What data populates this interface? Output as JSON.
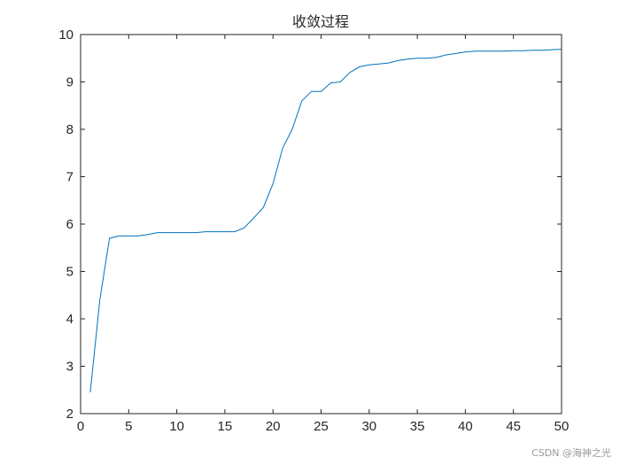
{
  "chart_data": {
    "type": "line",
    "title": "收敛过程",
    "xlabel": "",
    "ylabel": "",
    "xlim": [
      0,
      50
    ],
    "ylim": [
      2,
      10
    ],
    "xticks": [
      0,
      5,
      10,
      15,
      20,
      25,
      30,
      35,
      40,
      45,
      50
    ],
    "yticks": [
      2,
      3,
      4,
      5,
      6,
      7,
      8,
      9,
      10
    ],
    "grid": false,
    "line_color": "#0072BD",
    "series": [
      {
        "x": [
          1,
          2,
          3,
          4,
          5,
          6,
          7,
          8,
          9,
          10,
          11,
          12,
          13,
          14,
          15,
          16,
          17,
          18,
          19,
          20,
          21,
          22,
          23,
          24,
          25,
          26,
          27,
          28,
          29,
          30,
          31,
          32,
          33,
          34,
          35,
          36,
          37,
          38,
          39,
          40,
          41,
          42,
          43,
          44,
          45,
          46,
          47,
          48,
          49,
          50
        ],
        "y": [
          2.45,
          4.4,
          5.7,
          5.75,
          5.75,
          5.75,
          5.78,
          5.82,
          5.82,
          5.82,
          5.82,
          5.82,
          5.84,
          5.84,
          5.84,
          5.84,
          5.92,
          6.13,
          6.35,
          6.85,
          7.6,
          8.0,
          8.6,
          8.8,
          8.8,
          8.98,
          9.0,
          9.2,
          9.32,
          9.36,
          9.38,
          9.4,
          9.45,
          9.48,
          9.5,
          9.5,
          9.52,
          9.57,
          9.6,
          9.63,
          9.65,
          9.65,
          9.65,
          9.65,
          9.66,
          9.66,
          9.67,
          9.67,
          9.68,
          9.69
        ]
      }
    ]
  },
  "watermark": "CSDN @海神之光"
}
